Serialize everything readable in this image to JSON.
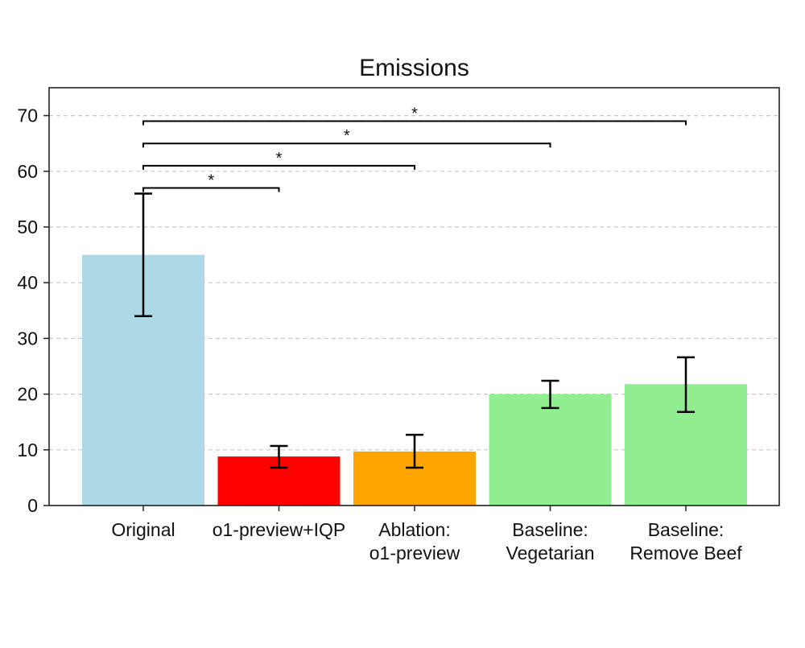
{
  "chart_data": {
    "type": "bar",
    "title": "Emissions",
    "xlabel": "",
    "ylabel": "",
    "ylim": [
      0,
      75
    ],
    "yticks": [
      0,
      10,
      20,
      30,
      40,
      50,
      60,
      70
    ],
    "grid": true,
    "categories": [
      [
        "Original"
      ],
      [
        "o1-preview+IQP"
      ],
      [
        "Ablation:",
        "o1-preview"
      ],
      [
        "Baseline:",
        "Vegetarian"
      ],
      [
        "Baseline:",
        "Remove Beef"
      ]
    ],
    "values": [
      45.0,
      8.8,
      9.7,
      20.0,
      21.8
    ],
    "error_low": [
      34.0,
      6.8,
      6.8,
      17.5,
      16.8
    ],
    "error_high": [
      56.0,
      10.7,
      12.7,
      22.4,
      26.6
    ],
    "colors": [
      "#add8e6",
      "#ff0000",
      "#ffa500",
      "#90ee90",
      "#90ee90"
    ],
    "significance": [
      {
        "from": 0,
        "to": 1,
        "y": 57,
        "label": "*"
      },
      {
        "from": 0,
        "to": 2,
        "y": 61,
        "label": "*"
      },
      {
        "from": 0,
        "to": 3,
        "y": 65,
        "label": "*"
      },
      {
        "from": 0,
        "to": 4,
        "y": 69,
        "label": "*"
      }
    ]
  }
}
